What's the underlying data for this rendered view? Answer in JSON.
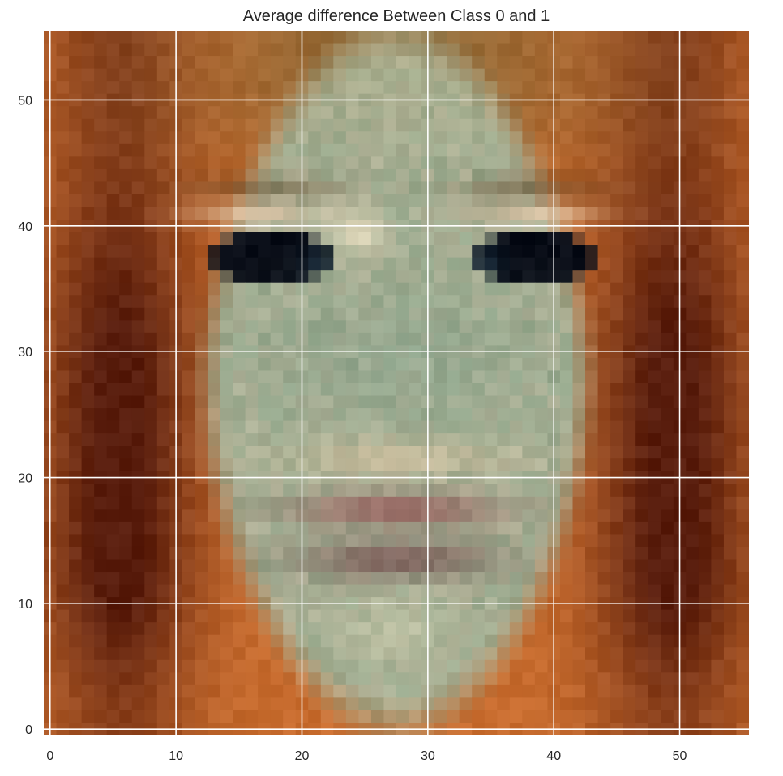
{
  "chart_data": {
    "type": "heatmap",
    "title": "Average difference Between Class 0 and 1",
    "xlabel": "",
    "ylabel": "",
    "xlim": [
      -0.5,
      55.5
    ],
    "ylim": [
      55.5,
      -0.5
    ],
    "xticks": [
      0,
      10,
      20,
      30,
      40,
      50
    ],
    "yticks": [
      0,
      10,
      20,
      30,
      40,
      50
    ],
    "grid": true,
    "grid_color": "#ffffff",
    "image": {
      "rows": 56,
      "cols": 56,
      "content": "low-resolution RGB average face image",
      "palette": {
        "background_orange": "#c8692c",
        "dark_red_brown": "#5a1a0c",
        "face_sage": "#9aa88e",
        "face_light": "#c8c8a4",
        "eye_dark": "#0a0e18",
        "lip": "#9a5a5a"
      }
    }
  }
}
